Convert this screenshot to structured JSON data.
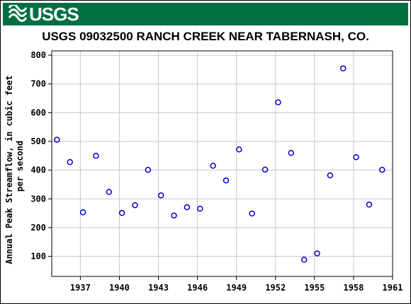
{
  "header": {
    "agency_logo_text": "USGS",
    "brand_color": "#006f41"
  },
  "chart_data": {
    "type": "scatter",
    "title": "USGS 09032500 RANCH CREEK NEAR TABERNASH, CO.",
    "xlabel": "",
    "ylabel_line1": "Annual Peak Streamflow, in cubic feet",
    "ylabel_line2": "per second",
    "xlim": [
      1934.8,
      1961.0
    ],
    "ylim": [
      30,
      815
    ],
    "x_ticks": [
      1937,
      1940,
      1943,
      1946,
      1949,
      1952,
      1955,
      1958,
      1961
    ],
    "y_ticks": [
      100,
      200,
      300,
      400,
      500,
      600,
      700,
      800
    ],
    "grid": true,
    "marker": "open-circle",
    "marker_color": "#0000cc",
    "series": [
      {
        "x": [
          1935.2,
          1936.2,
          1937.2,
          1938.2,
          1939.2,
          1940.2,
          1941.2,
          1942.2,
          1943.2,
          1944.2,
          1945.2,
          1946.2,
          1947.2,
          1948.2,
          1949.2,
          1950.2,
          1951.2,
          1952.2,
          1953.2,
          1954.2,
          1955.2,
          1956.2,
          1957.2,
          1958.2,
          1959.2,
          1960.2
        ],
        "y": [
          506,
          428,
          253,
          450,
          324,
          251,
          278,
          401,
          312,
          242,
          271,
          266,
          415,
          364,
          472,
          249,
          402,
          636,
          460,
          88,
          110,
          382,
          754,
          445,
          280,
          401
        ]
      }
    ]
  }
}
